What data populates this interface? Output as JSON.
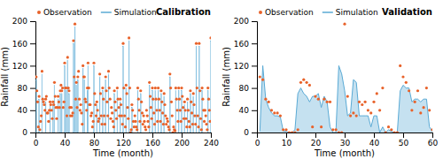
{
  "chart_data": [
    {
      "type": "bar",
      "xlabel": "Time (month)",
      "ylabel": "Rainfall (mm)",
      "annotations": [
        "Calibration"
      ],
      "x": [
        1,
        2,
        3,
        4,
        5,
        6,
        7,
        8,
        9,
        10,
        11,
        12,
        13,
        14,
        15,
        16,
        17,
        18,
        19,
        20,
        21,
        22,
        23,
        24,
        25,
        26,
        27,
        28,
        29,
        30,
        31,
        32,
        33,
        34,
        35,
        36,
        37,
        38,
        39,
        40,
        41,
        42,
        43,
        44,
        45,
        46,
        47,
        48,
        49,
        50,
        51,
        52,
        53,
        54,
        55,
        56,
        57,
        58,
        59,
        60,
        61,
        62,
        63,
        64,
        65,
        66,
        67,
        68,
        69,
        70,
        71,
        72,
        73,
        74,
        75,
        76,
        77,
        78,
        79,
        80,
        81,
        82,
        83,
        84,
        85,
        86,
        87,
        88,
        89,
        90,
        91,
        92,
        93,
        94,
        95,
        96,
        97,
        98,
        99,
        100,
        101,
        102,
        103,
        104,
        105,
        106,
        107,
        108,
        109,
        110,
        111,
        112,
        113,
        114,
        115,
        116,
        117,
        118,
        119,
        120,
        121,
        122,
        123,
        124,
        125,
        126,
        127,
        128,
        129,
        130,
        131,
        132,
        133,
        134,
        135,
        136,
        137,
        138,
        139,
        140,
        141,
        142,
        143,
        144,
        145,
        146,
        147,
        148,
        149,
        150,
        151,
        152,
        153,
        154,
        155,
        156,
        157,
        158,
        159,
        160,
        161,
        162,
        163,
        164,
        165,
        166,
        167,
        168,
        169,
        170,
        171,
        172,
        173,
        174,
        175,
        176,
        177,
        178,
        179,
        180,
        181,
        182,
        183,
        184,
        185,
        186,
        187,
        188,
        189,
        190,
        191,
        192,
        193,
        194,
        195,
        196,
        197,
        198,
        199,
        200,
        201,
        202,
        203,
        204,
        205,
        206,
        207,
        208,
        209,
        210,
        211,
        212,
        213,
        214,
        215,
        216,
        217,
        218,
        219,
        220,
        221,
        222,
        223,
        224,
        225,
        226,
        227,
        228,
        229,
        230,
        231,
        232,
        233,
        234,
        235,
        236,
        237,
        238,
        239,
        240
      ],
      "series": [
        {
          "name": "Observation",
          "type": "scatter",
          "color": "#e8622a",
          "values": [
            100,
            75,
            55,
            10,
            65,
            5,
            20,
            30,
            110,
            60,
            55,
            50,
            40,
            60,
            65,
            35,
            35,
            20,
            40,
            55,
            50,
            40,
            25,
            55,
            50,
            90,
            65,
            45,
            25,
            45,
            65,
            55,
            45,
            75,
            85,
            75,
            80,
            45,
            55,
            125,
            80,
            80,
            30,
            135,
            80,
            75,
            45,
            30,
            45,
            30,
            35,
            165,
            100,
            195,
            60,
            90,
            45,
            100,
            110,
            60,
            40,
            50,
            35,
            15,
            120,
            100,
            100,
            60,
            55,
            40,
            80,
            125,
            80,
            50,
            50,
            30,
            35,
            10,
            20,
            125,
            70,
            50,
            30,
            55,
            40,
            20,
            25,
            105,
            70,
            30,
            15,
            80,
            60,
            30,
            15,
            100,
            75,
            55,
            30,
            110,
            80,
            60,
            25,
            45,
            35,
            20,
            10,
            75,
            55,
            40,
            25,
            80,
            60,
            45,
            30,
            60,
            50,
            30,
            15,
            160,
            80,
            30,
            10,
            85,
            70,
            45,
            25,
            170,
            80,
            0,
            5,
            50,
            40,
            20,
            10,
            30,
            20,
            10,
            5,
            80,
            60,
            40,
            20,
            75,
            55,
            35,
            15,
            30,
            20,
            10,
            5,
            40,
            30,
            20,
            10,
            90,
            65,
            45,
            25,
            80,
            60,
            35,
            15,
            80,
            60,
            40,
            20,
            80,
            60,
            40,
            20,
            75,
            55,
            35,
            15,
            70,
            50,
            30,
            15,
            25,
            20,
            10,
            5,
            105,
            80,
            55,
            30,
            0,
            10,
            5,
            3,
            80,
            60,
            40,
            20,
            80,
            60,
            40,
            20,
            80,
            65,
            45,
            25,
            55,
            40,
            25,
            10,
            60,
            40,
            20,
            10,
            75,
            55,
            35,
            15,
            70,
            50,
            30,
            15,
            160,
            80,
            30,
            10,
            160,
            75,
            25,
            5,
            80,
            60,
            40,
            20,
            40,
            30,
            15,
            5,
            80,
            60,
            40,
            20,
            170
          ]
        },
        {
          "name": "Simulation",
          "type": "bar",
          "color": "#5aaad5",
          "values": [
            95,
            0,
            0,
            0,
            60,
            0,
            0,
            0,
            105,
            0,
            0,
            0,
            0,
            55,
            0,
            0,
            0,
            0,
            0,
            50,
            0,
            0,
            0,
            50,
            0,
            85,
            0,
            0,
            0,
            0,
            60,
            0,
            0,
            70,
            0,
            70,
            0,
            0,
            0,
            120,
            0,
            75,
            0,
            130,
            0,
            70,
            0,
            0,
            0,
            0,
            0,
            160,
            0,
            190,
            0,
            85,
            0,
            95,
            0,
            0,
            0,
            0,
            0,
            0,
            115,
            0,
            95,
            0,
            0,
            0,
            75,
            120,
            0,
            0,
            0,
            0,
            0,
            0,
            0,
            120,
            0,
            0,
            0,
            50,
            0,
            0,
            0,
            100,
            0,
            0,
            0,
            75,
            0,
            0,
            0,
            95,
            0,
            0,
            0,
            105,
            0,
            0,
            0,
            0,
            0,
            0,
            0,
            70,
            0,
            0,
            0,
            75,
            0,
            0,
            0,
            55,
            0,
            0,
            0,
            155,
            0,
            0,
            0,
            80,
            0,
            0,
            0,
            165,
            0,
            0,
            0,
            45,
            0,
            0,
            0,
            0,
            0,
            0,
            0,
            75,
            0,
            0,
            0,
            70,
            0,
            0,
            0,
            0,
            0,
            0,
            0,
            0,
            0,
            0,
            0,
            85,
            0,
            0,
            0,
            75,
            0,
            0,
            0,
            75,
            0,
            0,
            0,
            75,
            0,
            0,
            0,
            70,
            0,
            0,
            0,
            65,
            0,
            0,
            0,
            0,
            0,
            0,
            0,
            100,
            0,
            0,
            0,
            0,
            0,
            0,
            0,
            75,
            0,
            0,
            0,
            75,
            0,
            0,
            0,
            75,
            0,
            0,
            0,
            50,
            0,
            0,
            0,
            55,
            0,
            0,
            0,
            70,
            0,
            0,
            0,
            65,
            0,
            0,
            0,
            155,
            0,
            0,
            0,
            155,
            0,
            0,
            0,
            75,
            0,
            0,
            0,
            0,
            0,
            0,
            0,
            75,
            0,
            0,
            0,
            165
          ]
        }
      ],
      "xlim": [
        0,
        240
      ],
      "xticks": [
        0,
        40,
        80,
        120,
        160,
        200,
        240
      ],
      "ylim": [
        0,
        200
      ],
      "yticks": [
        0,
        40,
        80,
        120,
        160,
        200
      ],
      "legend": "upper left",
      "grid": false
    },
    {
      "type": "area",
      "xlabel": "Time (month)",
      "ylabel": "Rainfall (mm)",
      "annotations": [
        "Validation"
      ],
      "x": [
        1,
        2,
        3,
        4,
        5,
        6,
        7,
        8,
        9,
        10,
        11,
        12,
        13,
        14,
        15,
        16,
        17,
        18,
        19,
        20,
        21,
        22,
        23,
        24,
        25,
        26,
        27,
        28,
        29,
        30,
        31,
        32,
        33,
        34,
        35,
        36,
        37,
        38,
        39,
        40,
        41,
        42,
        43,
        44,
        45,
        46,
        47,
        48,
        49,
        50,
        51,
        52,
        53,
        54,
        55,
        56,
        57,
        58,
        59,
        60
      ],
      "series": [
        {
          "name": "Observation",
          "type": "scatter",
          "color": "#e8622a",
          "values": [
            100,
            95,
            60,
            55,
            40,
            35,
            35,
            30,
            5,
            5,
            0,
            0,
            0,
            5,
            90,
            95,
            90,
            85,
            10,
            65,
            60,
            10,
            60,
            55,
            55,
            5,
            5,
            0,
            0,
            195,
            65,
            30,
            35,
            30,
            55,
            50,
            55,
            40,
            35,
            55,
            70,
            40,
            80,
            0,
            10,
            5,
            0,
            0,
            120,
            100,
            90,
            75,
            40,
            55,
            75,
            35,
            45,
            80,
            40,
            5
          ]
        },
        {
          "name": "Simulation",
          "type": "area",
          "color": "#5aaad5",
          "values": [
            2,
            120,
            60,
            45,
            35,
            30,
            30,
            28,
            3,
            2,
            0,
            0,
            5,
            70,
            80,
            70,
            65,
            55,
            65,
            65,
            70,
            45,
            65,
            55,
            10,
            0,
            0,
            120,
            105,
            75,
            30,
            35,
            95,
            90,
            30,
            30,
            30,
            30,
            10,
            30,
            30,
            0,
            10,
            0,
            5,
            2,
            0,
            0,
            75,
            85,
            80,
            80,
            55,
            60,
            60,
            55,
            60,
            60,
            10,
            2
          ]
        }
      ],
      "xlim": [
        0,
        60
      ],
      "xticks": [
        0,
        10,
        20,
        30,
        40,
        50,
        60
      ],
      "ylim": [
        0,
        200
      ],
      "yticks": [
        0,
        40,
        80,
        120,
        160,
        200
      ],
      "legend": "upper left",
      "grid": false
    }
  ]
}
